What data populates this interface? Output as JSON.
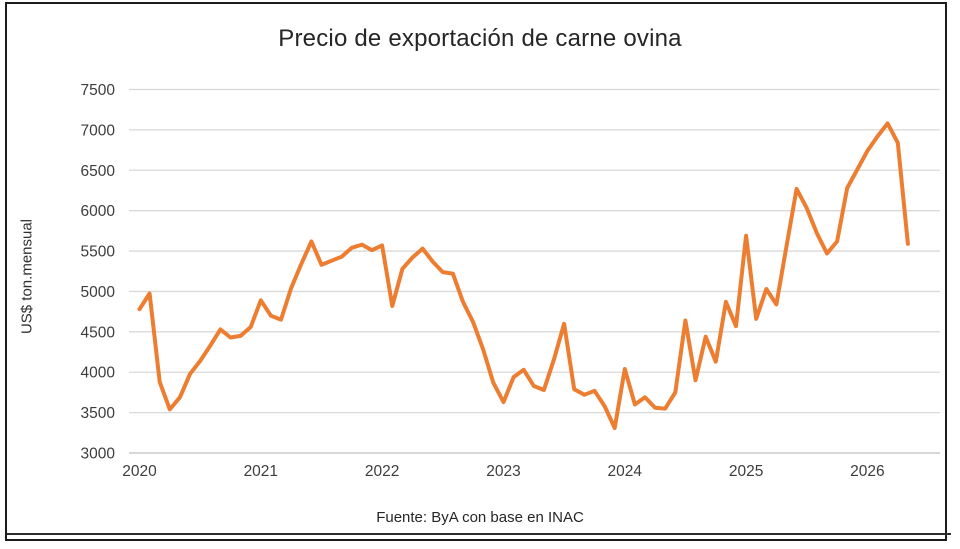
{
  "chart_data": {
    "type": "line",
    "title": "Precio de exportación de carne ovina",
    "ylabel": "US$ ton.mensual",
    "source_caption": "Fuente: ByA con base en INAC",
    "legend_position": "none",
    "grid": "horizontal-only",
    "line_color": "#ED7D31",
    "gridline_color": "#D9D9D9",
    "axis_line_color": "#BFBFBF",
    "ylim": [
      3000,
      7500
    ],
    "y_ticks": [
      3000,
      3500,
      4000,
      4500,
      5000,
      5500,
      6000,
      6500,
      7000,
      7500
    ],
    "x_tick_labels": [
      "2020",
      "2021",
      "2022",
      "2023",
      "2024",
      "2025",
      "2026"
    ],
    "x": [
      "2020-01",
      "2020-02",
      "2020-03",
      "2020-04",
      "2020-05",
      "2020-06",
      "2020-07",
      "2020-08",
      "2020-09",
      "2020-10",
      "2020-11",
      "2020-12",
      "2021-01",
      "2021-02",
      "2021-03",
      "2021-04",
      "2021-05",
      "2021-06",
      "2021-07",
      "2021-08",
      "2021-09",
      "2021-10",
      "2021-11",
      "2021-12",
      "2022-01",
      "2022-02",
      "2022-03",
      "2022-04",
      "2022-05",
      "2022-06",
      "2022-07",
      "2022-08",
      "2022-09",
      "2022-10",
      "2022-11",
      "2022-12",
      "2023-01",
      "2023-02",
      "2023-03",
      "2023-04",
      "2023-05",
      "2023-06",
      "2023-07",
      "2023-08",
      "2023-09",
      "2023-10",
      "2023-11",
      "2023-12",
      "2024-01",
      "2024-02",
      "2024-03",
      "2024-04",
      "2024-05",
      "2024-06",
      "2024-07",
      "2024-08",
      "2024-09",
      "2024-10",
      "2024-11",
      "2024-12",
      "2025-01",
      "2025-02",
      "2025-03",
      "2025-04",
      "2025-05",
      "2025-06",
      "2025-07",
      "2025-08",
      "2025-09",
      "2025-10",
      "2025-11",
      "2025-12",
      "2026-01",
      "2026-02",
      "2026-03",
      "2026-04",
      "2026-05"
    ],
    "values": [
      4780,
      4975,
      3880,
      3540,
      3690,
      3980,
      4140,
      4330,
      4530,
      4430,
      4450,
      4560,
      4890,
      4700,
      4650,
      5040,
      5340,
      5620,
      5330,
      5380,
      5430,
      5540,
      5580,
      5510,
      5570,
      4820,
      5280,
      5420,
      5530,
      5370,
      5240,
      5220,
      4870,
      4620,
      4280,
      3870,
      3630,
      3940,
      4030,
      3830,
      3780,
      4160,
      4600,
      3790,
      3720,
      3770,
      3580,
      3310,
      4040,
      3600,
      3690,
      3560,
      3550,
      3750,
      4640,
      3900,
      4440,
      4130,
      4870,
      4570,
      5690,
      4660,
      5030,
      4840,
      5560,
      6270,
      6030,
      5720,
      5470,
      5620,
      6280,
      6510,
      6740,
      6920,
      7080,
      6840,
      5590
    ]
  }
}
